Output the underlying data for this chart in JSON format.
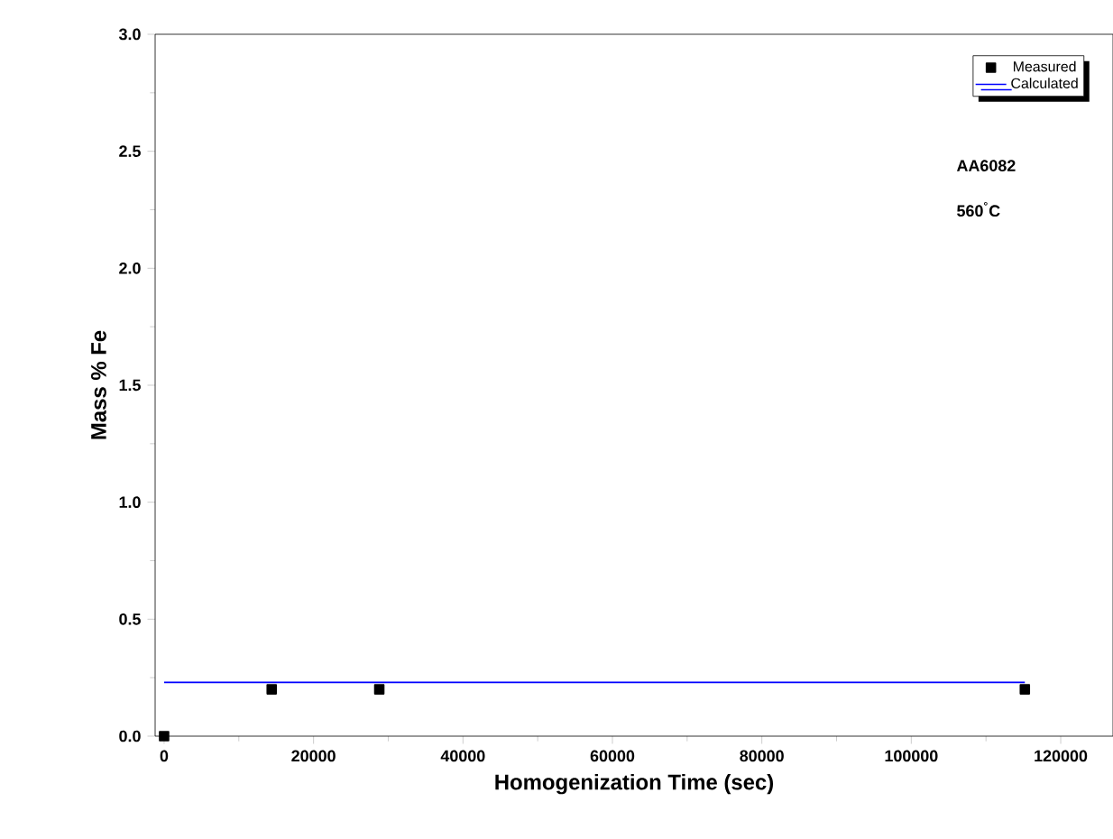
{
  "chart_data": {
    "type": "scatter",
    "xlabel": "Homogenization Time (sec)",
    "ylabel": "Mass % Fe",
    "xlim": [
      -1200,
      127000
    ],
    "ylim": [
      0,
      3.0
    ],
    "xticks": [
      0,
      20000,
      40000,
      60000,
      80000,
      100000,
      120000
    ],
    "yticks": [
      {
        "value": 0,
        "label": "0.0"
      },
      {
        "value": 0.5,
        "label": "0.5"
      },
      {
        "value": 1,
        "label": "1.0"
      },
      {
        "value": 1.5,
        "label": "1.5"
      },
      {
        "value": 2,
        "label": "2.0"
      },
      {
        "value": 2.5,
        "label": "2.5"
      },
      {
        "value": 3,
        "label": "3.0"
      }
    ],
    "series": [
      {
        "name": "Measured",
        "marker": "square",
        "color": "#000000",
        "x": [
          0,
          14400,
          28800,
          115200
        ],
        "values": [
          0.0,
          0.2,
          0.2,
          0.2
        ]
      },
      {
        "name": "Calculated",
        "type": "line",
        "marker": "none",
        "color": "#0000ff",
        "x": [
          0,
          115200
        ],
        "values": [
          0.23,
          0.23
        ]
      }
    ],
    "legend": "top right",
    "grid": false,
    "annotations": [
      "AA6082",
      "560$^{°}$C"
    ]
  }
}
